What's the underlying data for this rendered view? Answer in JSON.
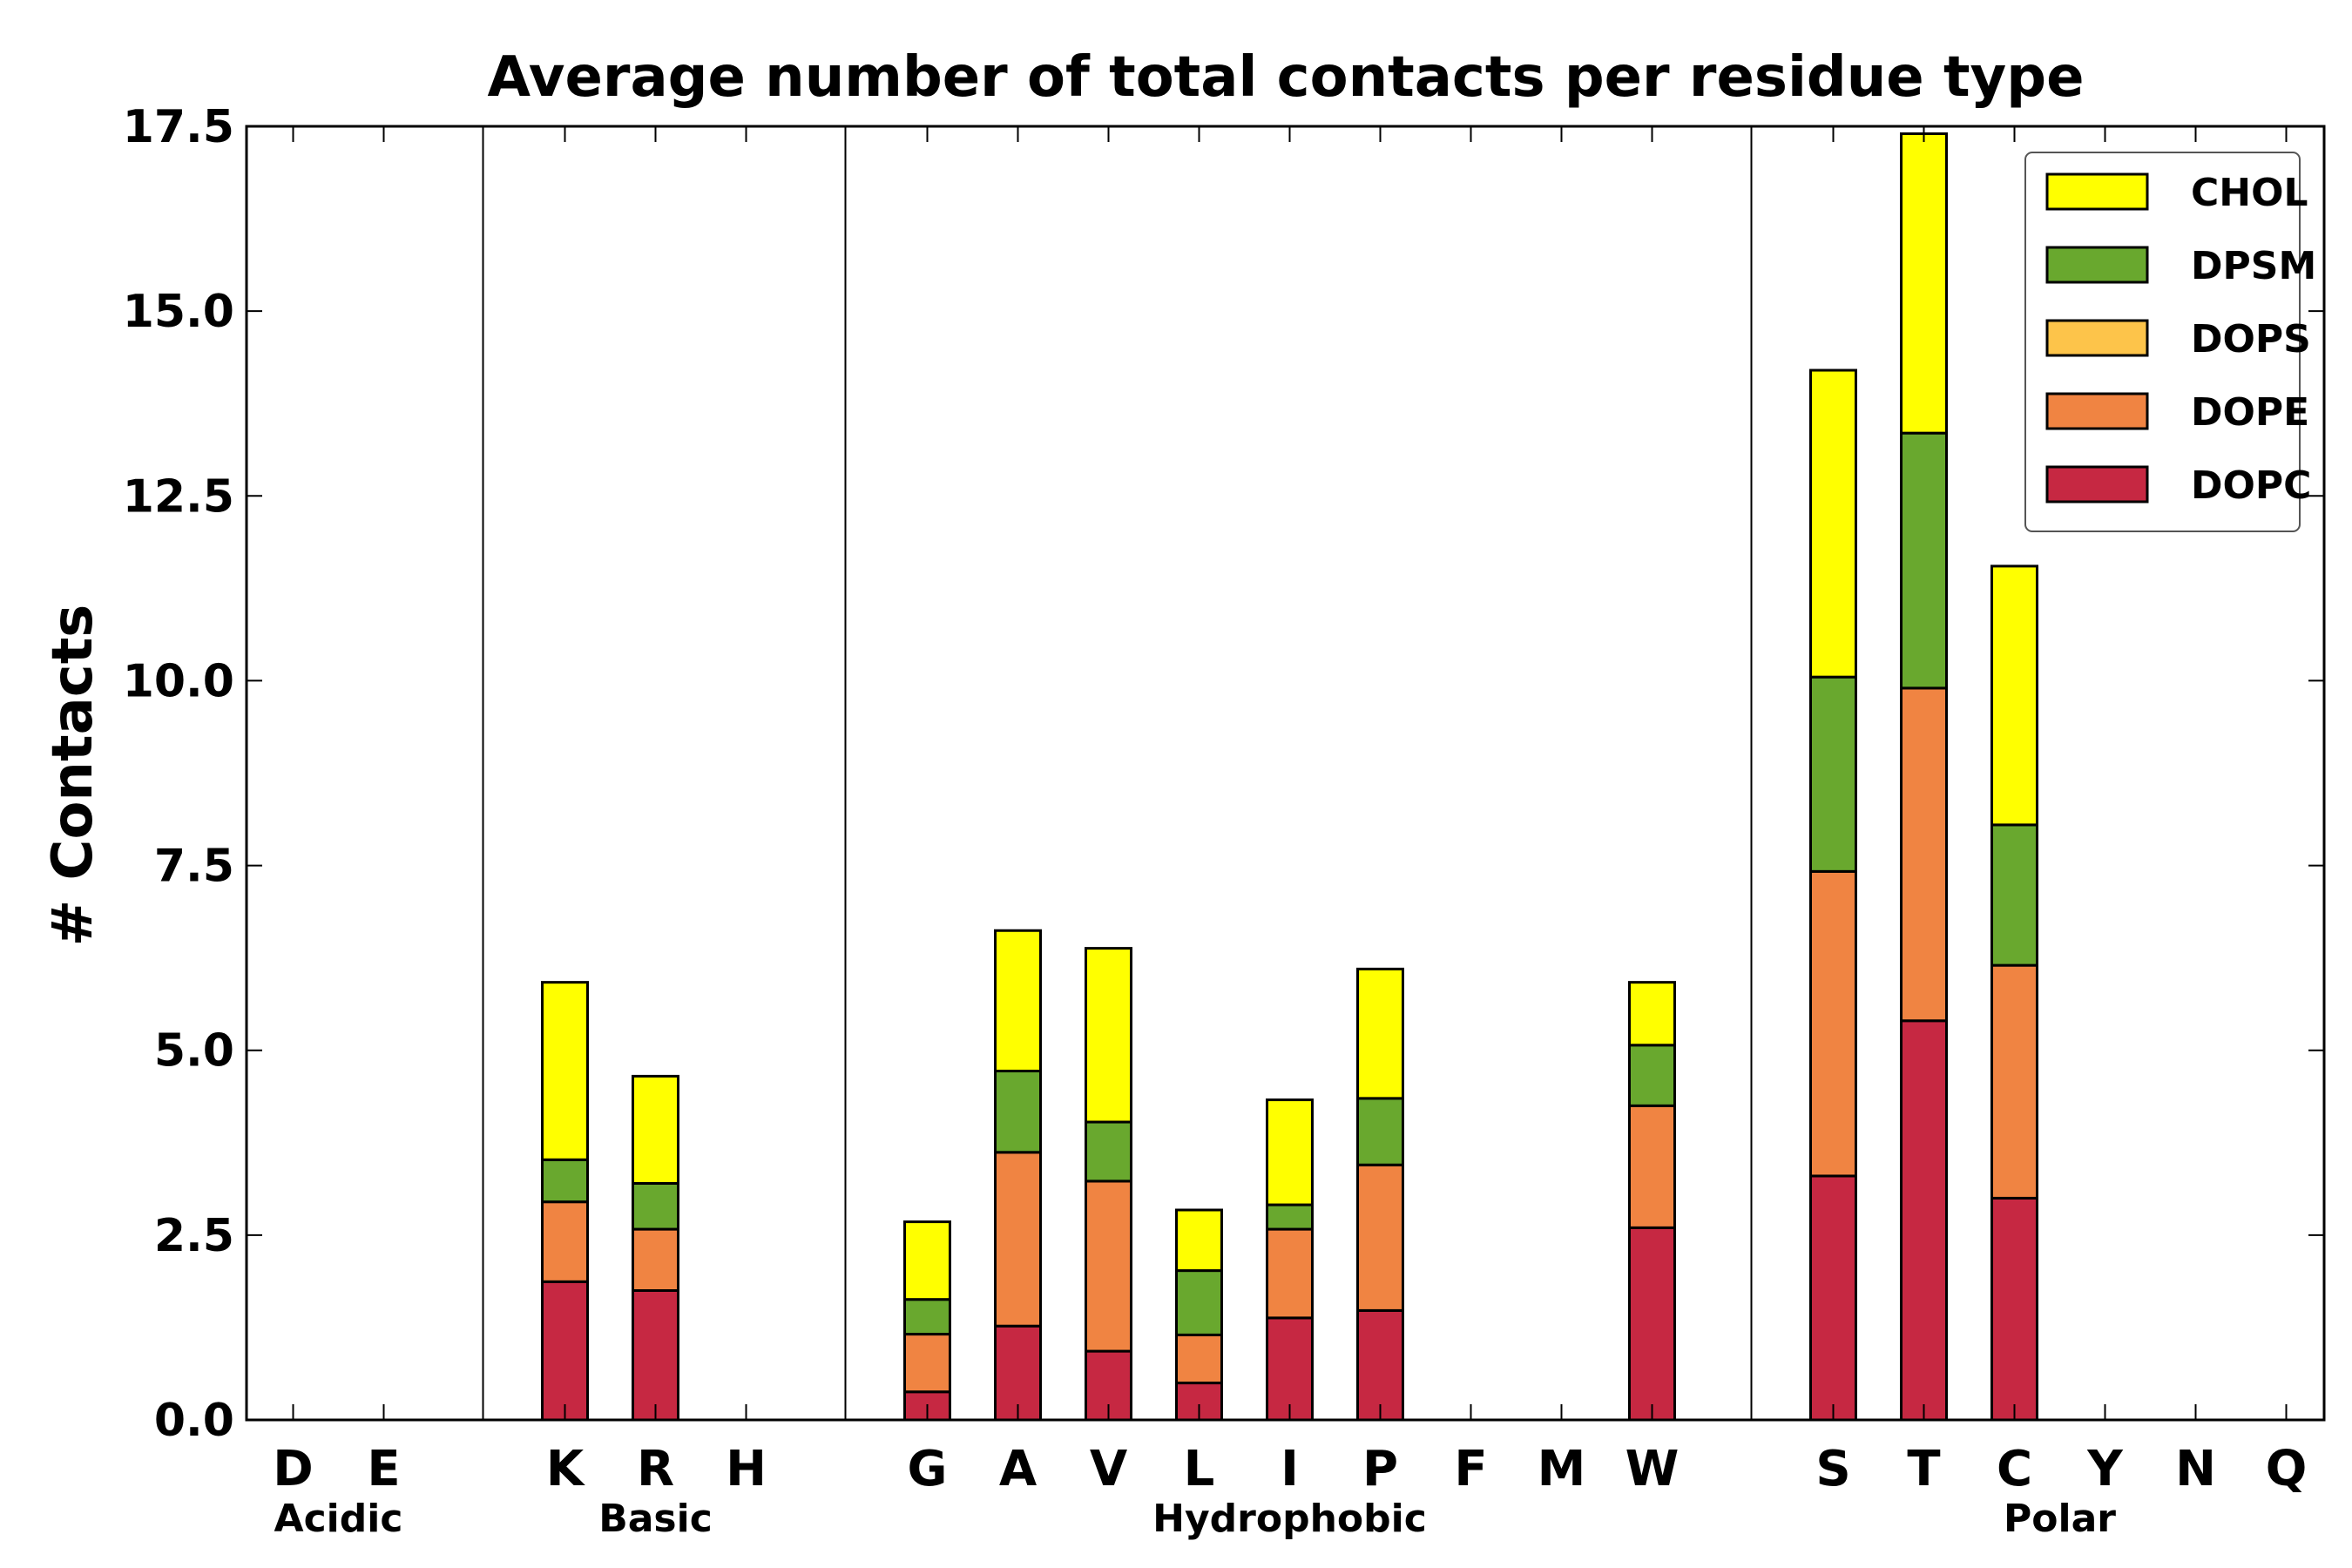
{
  "chart_data": {
    "type": "bar",
    "stacked": true,
    "title": "Average number of total contacts per residue type",
    "xlabel": "",
    "ylabel": "# Contacts",
    "ylim": [
      0,
      17.5
    ],
    "yticks": [
      "0.0",
      "2.5",
      "5.0",
      "7.5",
      "10.0",
      "12.5",
      "15.0",
      "17.5"
    ],
    "grid": false,
    "legend_position": "top-right",
    "categories": [
      "D",
      "E",
      "",
      "K",
      "R",
      "H",
      "",
      "G",
      "A",
      "V",
      "L",
      "I",
      "P",
      "F",
      "M",
      "W",
      "",
      "S",
      "T",
      "C",
      "Y",
      "N",
      "Q"
    ],
    "groups": [
      {
        "label": "Acidic",
        "members": [
          "D",
          "E"
        ]
      },
      {
        "label": "Basic",
        "members": [
          "K",
          "R",
          "H"
        ]
      },
      {
        "label": "Hydrophobic",
        "members": [
          "G",
          "A",
          "V",
          "L",
          "I",
          "P",
          "F",
          "M",
          "W"
        ]
      },
      {
        "label": "Polar",
        "members": [
          "S",
          "T",
          "C",
          "Y",
          "N",
          "Q"
        ]
      }
    ],
    "series": [
      {
        "name": "DOPC",
        "color": "#c62842",
        "values": [
          0,
          0,
          0,
          1.87,
          1.75,
          0,
          0,
          0.38,
          1.27,
          0.93,
          0.5,
          1.38,
          1.48,
          0,
          0,
          2.6,
          0,
          3.3,
          5.4,
          3.0,
          0,
          0,
          0
        ]
      },
      {
        "name": "DOPE",
        "color": "#f08442",
        "values": [
          0,
          0,
          0,
          1.08,
          0.83,
          0,
          0,
          0.78,
          2.35,
          2.3,
          0.65,
          1.2,
          1.97,
          0,
          0,
          1.65,
          0,
          4.12,
          4.5,
          3.15,
          0,
          0,
          0
        ]
      },
      {
        "name": "DOPS",
        "color": "#fdc44a",
        "values": [
          0,
          0,
          0,
          0,
          0,
          0,
          0,
          0,
          0,
          0,
          0,
          0,
          0,
          0,
          0,
          0,
          0,
          0,
          0,
          0,
          0,
          0,
          0
        ]
      },
      {
        "name": "DPSM",
        "color": "#69a82e",
        "values": [
          0,
          0,
          0,
          0.57,
          0.62,
          0,
          0,
          0.47,
          1.1,
          0.8,
          0.87,
          0.33,
          0.9,
          0,
          0,
          0.82,
          0,
          2.63,
          3.45,
          1.9,
          0,
          0,
          0
        ]
      },
      {
        "name": "CHOL",
        "color": "#ffff00",
        "values": [
          0,
          0,
          0,
          2.4,
          1.45,
          0,
          0,
          1.05,
          1.9,
          2.35,
          0.82,
          1.42,
          1.75,
          0,
          0,
          0.85,
          0,
          4.15,
          4.05,
          3.5,
          0,
          0,
          0
        ]
      }
    ]
  }
}
